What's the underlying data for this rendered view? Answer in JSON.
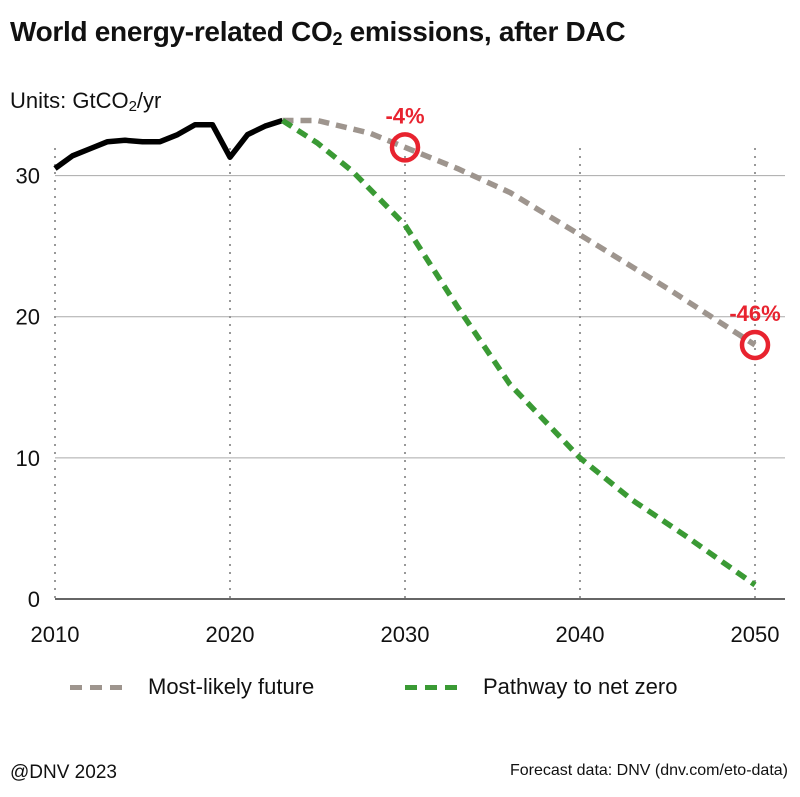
{
  "title": {
    "main": "World energy-related CO",
    "sub": "2",
    "rest": " emissions, after DAC"
  },
  "units": {
    "prefix": "Units: GtCO",
    "sub": "2",
    "suffix": "/yr"
  },
  "colors": {
    "history": "#000000",
    "most_likely": "#9e958e",
    "net_zero": "#3a9a34",
    "annotation": "#e8232f",
    "grid": "#aaaaaa"
  },
  "chart_data": {
    "type": "line",
    "xlim": [
      2010,
      2050
    ],
    "ylim": [
      0,
      35
    ],
    "x_ticks": [
      2010,
      2020,
      2030,
      2040,
      2050
    ],
    "y_ticks": [
      0,
      10,
      20,
      30
    ],
    "series": [
      {
        "key": "history",
        "style": "solid",
        "x": [
          2010,
          2011,
          2012,
          2013,
          2014,
          2015,
          2016,
          2017,
          2018,
          2019,
          2020,
          2021,
          2022,
          2023
        ],
        "y": [
          30.5,
          31.4,
          31.9,
          32.4,
          32.5,
          32.4,
          32.4,
          32.9,
          33.6,
          33.6,
          31.3,
          32.9,
          33.5,
          33.9
        ]
      },
      {
        "key": "most_likely",
        "name": "Most-likely future",
        "style": "dashed",
        "x": [
          2023,
          2025,
          2028,
          2030,
          2033,
          2036,
          2040,
          2045,
          2050
        ],
        "y": [
          33.9,
          33.9,
          33.0,
          32.0,
          30.5,
          28.8,
          25.8,
          22.0,
          18.0
        ]
      },
      {
        "key": "net_zero",
        "name": "Pathway to net zero",
        "style": "dashed",
        "x": [
          2023,
          2025,
          2027,
          2030,
          2033,
          2036,
          2040,
          2043,
          2046,
          2050
        ],
        "y": [
          33.9,
          32.3,
          30.3,
          26.5,
          20.7,
          15.2,
          10.0,
          7.0,
          4.5,
          1.0
        ]
      }
    ],
    "annotations": [
      {
        "x": 2030,
        "y": 32.0,
        "label": "-4%"
      },
      {
        "x": 2050,
        "y": 18.0,
        "label": "-46%"
      }
    ]
  },
  "legend": [
    {
      "label": "Most-likely future",
      "color_key": "most_likely"
    },
    {
      "label": "Pathway to net zero",
      "color_key": "net_zero"
    }
  ],
  "footer": {
    "left": "@DNV 2023",
    "right": "Forecast data: DNV (dnv.com/eto-data)"
  }
}
